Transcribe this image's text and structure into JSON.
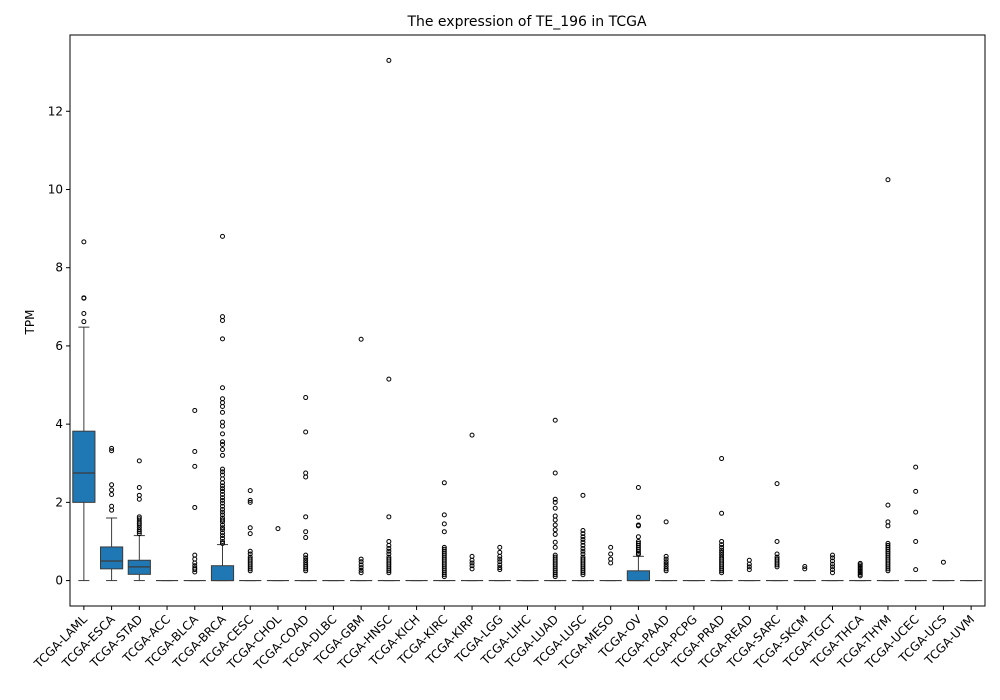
{
  "chart_data": {
    "type": "box",
    "title": "The expression of TE_196 in TCGA",
    "xlabel": "",
    "ylabel": "TPM",
    "ylim": [
      -0.65,
      13.95
    ],
    "yticks": [
      0,
      2,
      4,
      6,
      8,
      10,
      12
    ],
    "grid": false,
    "box_color": "#1f77b4",
    "categories": [
      "TCGA-LAML",
      "TCGA-ESCA",
      "TCGA-STAD",
      "TCGA-ACC",
      "TCGA-BLCA",
      "TCGA-BRCA",
      "TCGA-CESC",
      "TCGA-CHOL",
      "TCGA-COAD",
      "TCGA-DLBC",
      "TCGA-GBM",
      "TCGA-HNSC",
      "TCGA-KICH",
      "TCGA-KIRC",
      "TCGA-KIRP",
      "TCGA-LGG",
      "TCGA-LIHC",
      "TCGA-LUAD",
      "TCGA-LUSC",
      "TCGA-MESO",
      "TCGA-OV",
      "TCGA-PAAD",
      "TCGA-PCPG",
      "TCGA-PRAD",
      "TCGA-READ",
      "TCGA-SARC",
      "TCGA-SKCM",
      "TCGA-TGCT",
      "TCGA-THCA",
      "TCGA-THYM",
      "TCGA-UCEC",
      "TCGA-UCS",
      "TCGA-UVM"
    ],
    "boxes": [
      {
        "q1": 2.0,
        "median": 2.75,
        "q3": 3.82,
        "whislo": 0,
        "whishi": 6.48,
        "fliers": [
          8.66,
          7.23,
          7.22,
          6.83,
          6.62
        ]
      },
      {
        "q1": 0.3,
        "median": 0.5,
        "q3": 0.86,
        "whislo": 0,
        "whishi": 1.6,
        "fliers": [
          3.38,
          3.32,
          2.45,
          2.32,
          2.2,
          1.9,
          1.8
        ]
      },
      {
        "q1": 0.16,
        "median": 0.35,
        "q3": 0.52,
        "whislo": 0,
        "whishi": 1.15,
        "fliers": [
          3.06,
          2.38,
          2.18,
          2.08,
          1.63,
          1.58,
          1.52,
          1.47,
          1.42,
          1.36,
          1.3,
          1.25,
          1.2
        ]
      },
      {
        "q1": 0,
        "median": 0,
        "q3": 0,
        "whislo": 0,
        "whishi": 0,
        "fliers": []
      },
      {
        "q1": 0,
        "median": 0,
        "q3": 0,
        "whislo": 0,
        "whishi": 0,
        "fliers": [
          4.35,
          3.3,
          2.92,
          1.87,
          0.65,
          0.55,
          0.45,
          0.38,
          0.32,
          0.28,
          0.22
        ]
      },
      {
        "q1": 0,
        "median": 0,
        "q3": 0.38,
        "whislo": 0,
        "whishi": 0.92,
        "fliers": [
          8.8,
          6.75,
          6.65,
          6.18,
          4.93,
          4.65,
          4.55,
          4.45,
          4.3,
          4.05,
          3.95,
          3.75,
          3.55,
          3.48,
          3.35,
          3.2,
          2.85,
          2.78,
          2.7,
          2.6,
          2.5,
          2.42,
          2.35,
          2.28,
          2.2,
          2.12,
          2.05,
          1.98,
          1.9,
          1.82,
          1.75,
          1.68,
          1.6,
          1.55,
          1.5,
          1.42,
          1.35,
          1.3,
          1.22,
          1.15,
          1.08,
          1.0,
          0.95
        ]
      },
      {
        "q1": 0,
        "median": 0,
        "q3": 0,
        "whislo": 0,
        "whishi": 0,
        "fliers": [
          2.3,
          2.05,
          2.0,
          1.35,
          1.2,
          0.75,
          0.68,
          0.6,
          0.55,
          0.5,
          0.45,
          0.4,
          0.35,
          0.3,
          0.25
        ]
      },
      {
        "q1": 0,
        "median": 0,
        "q3": 0,
        "whislo": 0,
        "whishi": 0,
        "fliers": [
          1.33
        ]
      },
      {
        "q1": 0,
        "median": 0,
        "q3": 0,
        "whislo": 0,
        "whishi": 0,
        "fliers": [
          4.68,
          3.8,
          2.75,
          2.65,
          1.63,
          1.25,
          1.1,
          0.65,
          0.58,
          0.52,
          0.46,
          0.4,
          0.35,
          0.3,
          0.25
        ]
      },
      {
        "q1": 0,
        "median": 0,
        "q3": 0,
        "whislo": 0,
        "whishi": 0,
        "fliers": []
      },
      {
        "q1": 0,
        "median": 0,
        "q3": 0,
        "whislo": 0,
        "whishi": 0,
        "fliers": [
          6.17,
          0.55,
          0.48,
          0.4,
          0.33,
          0.26,
          0.2
        ]
      },
      {
        "q1": 0,
        "median": 0,
        "q3": 0,
        "whislo": 0,
        "whishi": 0,
        "fliers": [
          13.3,
          5.15,
          1.63,
          1.0,
          0.9,
          0.82,
          0.75,
          0.68,
          0.6,
          0.55,
          0.5,
          0.45,
          0.4,
          0.35,
          0.3,
          0.25,
          0.2
        ]
      },
      {
        "q1": 0,
        "median": 0,
        "q3": 0,
        "whislo": 0,
        "whishi": 0,
        "fliers": []
      },
      {
        "q1": 0,
        "median": 0,
        "q3": 0,
        "whislo": 0,
        "whishi": 0,
        "fliers": [
          2.5,
          1.68,
          1.45,
          1.25,
          0.85,
          0.8,
          0.75,
          0.7,
          0.65,
          0.6,
          0.55,
          0.5,
          0.45,
          0.4,
          0.35,
          0.3,
          0.25,
          0.2,
          0.15,
          0.1
        ]
      },
      {
        "q1": 0,
        "median": 0,
        "q3": 0,
        "whislo": 0,
        "whishi": 0,
        "fliers": [
          3.72,
          0.62,
          0.52,
          0.45,
          0.38,
          0.3
        ]
      },
      {
        "q1": 0,
        "median": 0,
        "q3": 0,
        "whislo": 0,
        "whishi": 0,
        "fliers": [
          0.85,
          0.72,
          0.62,
          0.55,
          0.48,
          0.4,
          0.33,
          0.28
        ]
      },
      {
        "q1": 0,
        "median": 0,
        "q3": 0,
        "whislo": 0,
        "whishi": 0,
        "fliers": []
      },
      {
        "q1": 0,
        "median": 0,
        "q3": 0,
        "whislo": 0,
        "whishi": 0,
        "fliers": [
          4.1,
          2.75,
          2.08,
          2.0,
          1.85,
          1.65,
          1.55,
          1.42,
          1.3,
          1.18,
          0.98,
          0.85,
          0.65,
          0.6,
          0.55,
          0.5,
          0.45,
          0.4,
          0.35,
          0.3,
          0.25,
          0.2,
          0.15,
          0.1
        ]
      },
      {
        "q1": 0,
        "median": 0,
        "q3": 0,
        "whislo": 0,
        "whishi": 0,
        "fliers": [
          2.18,
          1.28,
          1.2,
          1.12,
          1.05,
          0.98,
          0.9,
          0.82,
          0.75,
          0.68,
          0.6,
          0.55,
          0.5,
          0.45,
          0.4,
          0.35,
          0.3,
          0.25,
          0.2,
          0.15
        ]
      },
      {
        "q1": 0,
        "median": 0,
        "q3": 0,
        "whislo": 0,
        "whishi": 0,
        "fliers": [
          0.85,
          0.68,
          0.55,
          0.45
        ]
      },
      {
        "q1": 0,
        "median": 0,
        "q3": 0.25,
        "whislo": 0,
        "whishi": 0.62,
        "fliers": [
          2.38,
          1.62,
          1.42,
          1.4,
          1.12,
          1.0,
          0.95,
          0.9,
          0.85,
          0.8,
          0.75,
          0.7,
          0.67
        ]
      },
      {
        "q1": 0,
        "median": 0,
        "q3": 0,
        "whislo": 0,
        "whishi": 0,
        "fliers": [
          1.5,
          0.62,
          0.55,
          0.48,
          0.42,
          0.36,
          0.3,
          0.25
        ]
      },
      {
        "q1": 0,
        "median": 0,
        "q3": 0,
        "whislo": 0,
        "whishi": 0,
        "fliers": []
      },
      {
        "q1": 0,
        "median": 0,
        "q3": 0,
        "whislo": 0,
        "whishi": 0,
        "fliers": [
          3.12,
          1.72,
          1.0,
          0.92,
          0.85,
          0.78,
          0.72,
          0.66,
          0.6,
          0.55,
          0.5,
          0.45,
          0.4,
          0.35,
          0.3,
          0.25,
          0.2
        ]
      },
      {
        "q1": 0,
        "median": 0,
        "q3": 0,
        "whislo": 0,
        "whishi": 0,
        "fliers": [
          0.52,
          0.42,
          0.35,
          0.28
        ]
      },
      {
        "q1": 0,
        "median": 0,
        "q3": 0,
        "whislo": 0,
        "whishi": 0,
        "fliers": [
          2.48,
          1.0,
          0.68,
          0.6,
          0.55,
          0.5,
          0.45,
          0.4,
          0.35
        ]
      },
      {
        "q1": 0,
        "median": 0,
        "q3": 0,
        "whislo": 0,
        "whishi": 0,
        "fliers": [
          0.36,
          0.3
        ]
      },
      {
        "q1": 0,
        "median": 0,
        "q3": 0,
        "whislo": 0,
        "whishi": 0,
        "fliers": [
          0.65,
          0.58,
          0.5,
          0.42,
          0.35,
          0.28,
          0.2
        ]
      },
      {
        "q1": 0,
        "median": 0,
        "q3": 0,
        "whislo": 0,
        "whishi": 0,
        "fliers": [
          0.44,
          0.4,
          0.36,
          0.32,
          0.28,
          0.24,
          0.2,
          0.16,
          0.12
        ]
      },
      {
        "q1": 0,
        "median": 0,
        "q3": 0,
        "whislo": 0,
        "whishi": 0,
        "fliers": [
          10.25,
          1.93,
          1.5,
          1.4,
          0.95,
          0.9,
          0.85,
          0.8,
          0.75,
          0.7,
          0.65,
          0.6,
          0.55,
          0.5,
          0.45,
          0.4,
          0.35,
          0.3,
          0.25
        ]
      },
      {
        "q1": 0,
        "median": 0,
        "q3": 0,
        "whislo": 0,
        "whishi": 0,
        "fliers": [
          2.9,
          2.28,
          1.75,
          1.0,
          0.28
        ]
      },
      {
        "q1": 0,
        "median": 0,
        "q3": 0,
        "whislo": 0,
        "whishi": 0,
        "fliers": [
          0.47
        ]
      },
      {
        "q1": 0,
        "median": 0,
        "q3": 0,
        "whislo": 0,
        "whishi": 0,
        "fliers": []
      }
    ]
  }
}
